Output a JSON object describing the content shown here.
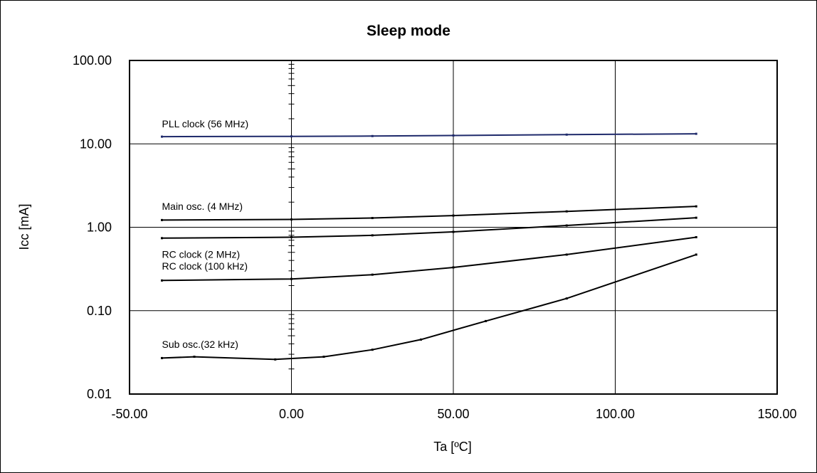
{
  "chart_data": {
    "type": "line",
    "title": "Sleep mode",
    "xlabel": "Ta [ºC]",
    "ylabel": "Icc [mA]",
    "xlim": [
      -50,
      150
    ],
    "ylim": [
      0.01,
      100
    ],
    "yscale": "log",
    "grid": true,
    "x_ticks": [
      "-50.00",
      "0.00",
      "50.00",
      "100.00",
      "150.00"
    ],
    "y_ticks": [
      "0.01",
      "0.10",
      "1.00",
      "10.00",
      "100.00"
    ],
    "series": [
      {
        "name": "PLL clock (56 MHz)",
        "color": "#1f2a6b",
        "x": [
          -40,
          0,
          25,
          50,
          85,
          125
        ],
        "y": [
          12.2,
          12.3,
          12.4,
          12.6,
          12.9,
          13.2
        ]
      },
      {
        "name": "Main osc. (4 MHz)",
        "color": "#000000",
        "x": [
          -40,
          0,
          25,
          50,
          85,
          125
        ],
        "y": [
          1.22,
          1.24,
          1.29,
          1.38,
          1.55,
          1.78
        ]
      },
      {
        "name": "RC clock (2 MHz)",
        "color": "#000000",
        "x": [
          -40,
          0,
          25,
          50,
          85,
          125
        ],
        "y": [
          0.74,
          0.76,
          0.8,
          0.88,
          1.05,
          1.3
        ]
      },
      {
        "name": "RC clock (100 kHz)",
        "color": "#000000",
        "x": [
          -40,
          0,
          25,
          50,
          85,
          125
        ],
        "y": [
          0.23,
          0.24,
          0.27,
          0.33,
          0.47,
          0.76
        ]
      },
      {
        "name": "Sub osc.(32 kHz)",
        "color": "#000000",
        "x": [
          -40,
          -30,
          -5,
          10,
          25,
          40,
          60,
          85,
          125
        ],
        "y": [
          0.027,
          0.028,
          0.026,
          0.028,
          0.034,
          0.045,
          0.075,
          0.14,
          0.47
        ]
      }
    ]
  }
}
